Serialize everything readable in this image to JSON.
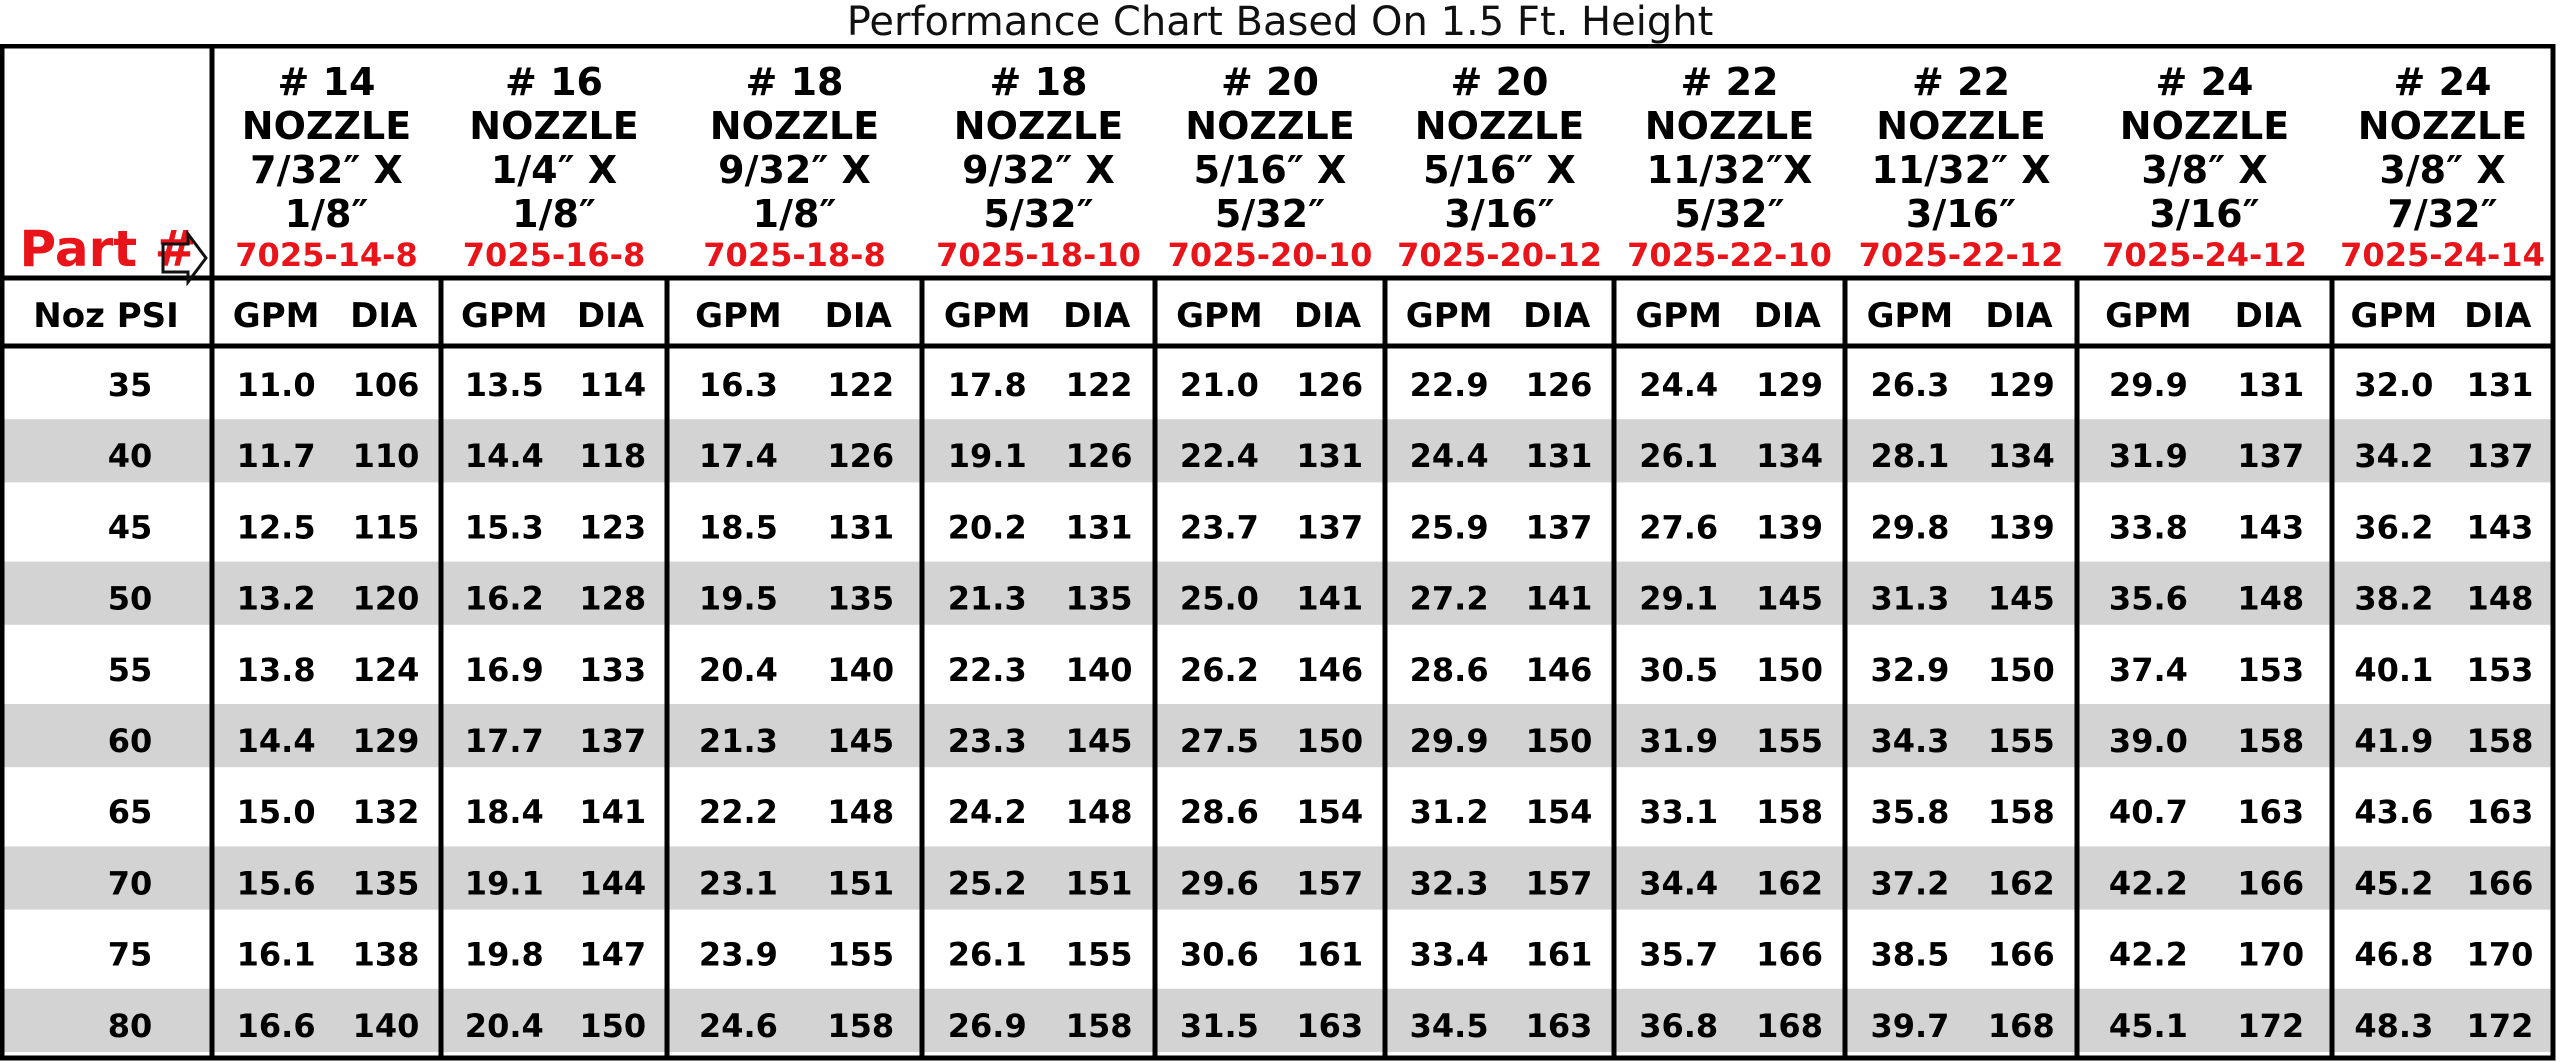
{
  "chart_data": {
    "type": "table",
    "title": "Performance Chart Based On 1.5 Ft. Height",
    "part_label": "Part #",
    "row_header": "Noz PSI",
    "sub_headers": [
      "GPM",
      "DIA"
    ],
    "nozzles": [
      {
        "line1": "# 14",
        "line2": "NOZZLE",
        "line3": "7/32″ X",
        "line4": "1/8″",
        "part": "7025-14-8"
      },
      {
        "line1": "# 16",
        "line2": "NOZZLE",
        "line3": "1/4″ X",
        "line4": "1/8″",
        "part": "7025-16-8"
      },
      {
        "line1": "# 18",
        "line2": "NOZZLE",
        "line3": "9/32″ X",
        "line4": "1/8″",
        "part": "7025-18-8"
      },
      {
        "line1": "# 18",
        "line2": "NOZZLE",
        "line3": "9/32″ X",
        "line4": "5/32″",
        "part": "7025-18-10"
      },
      {
        "line1": "# 20",
        "line2": "NOZZLE",
        "line3": "5/16″ X",
        "line4": "5/32″",
        "part": "7025-20-10"
      },
      {
        "line1": "# 20",
        "line2": "NOZZLE",
        "line3": "5/16″ X",
        "line4": "3/16″",
        "part": "7025-20-12"
      },
      {
        "line1": "# 22",
        "line2": "NOZZLE",
        "line3": "11/32″X",
        "line4": "5/32″",
        "part": "7025-22-10"
      },
      {
        "line1": "# 22",
        "line2": "NOZZLE",
        "line3": "11/32″ X",
        "line4": "3/16″",
        "part": "7025-22-12"
      },
      {
        "line1": "# 24",
        "line2": "NOZZLE",
        "line3": "3/8″ X",
        "line4": "3/16″",
        "part": "7025-24-12"
      },
      {
        "line1": "# 24",
        "line2": "NOZZLE",
        "line3": "3/8″ X",
        "line4": "7/32″",
        "part": "7025-24-14"
      }
    ],
    "rows": [
      {
        "psi": "35",
        "values": [
          "11.0",
          "106",
          "13.5",
          "114",
          "16.3",
          "122",
          "17.8",
          "122",
          "21.0",
          "126",
          "22.9",
          "126",
          "24.4",
          "129",
          "26.3",
          "129",
          "29.9",
          "131",
          "32.0",
          "131"
        ]
      },
      {
        "psi": "40",
        "values": [
          "11.7",
          "110",
          "14.4",
          "118",
          "17.4",
          "126",
          "19.1",
          "126",
          "22.4",
          "131",
          "24.4",
          "131",
          "26.1",
          "134",
          "28.1",
          "134",
          "31.9",
          "137",
          "34.2",
          "137"
        ]
      },
      {
        "psi": "45",
        "values": [
          "12.5",
          "115",
          "15.3",
          "123",
          "18.5",
          "131",
          "20.2",
          "131",
          "23.7",
          "137",
          "25.9",
          "137",
          "27.6",
          "139",
          "29.8",
          "139",
          "33.8",
          "143",
          "36.2",
          "143"
        ]
      },
      {
        "psi": "50",
        "values": [
          "13.2",
          "120",
          "16.2",
          "128",
          "19.5",
          "135",
          "21.3",
          "135",
          "25.0",
          "141",
          "27.2",
          "141",
          "29.1",
          "145",
          "31.3",
          "145",
          "35.6",
          "148",
          "38.2",
          "148"
        ]
      },
      {
        "psi": "55",
        "values": [
          "13.8",
          "124",
          "16.9",
          "133",
          "20.4",
          "140",
          "22.3",
          "140",
          "26.2",
          "146",
          "28.6",
          "146",
          "30.5",
          "150",
          "32.9",
          "150",
          "37.4",
          "153",
          "40.1",
          "153"
        ]
      },
      {
        "psi": "60",
        "values": [
          "14.4",
          "129",
          "17.7",
          "137",
          "21.3",
          "145",
          "23.3",
          "145",
          "27.5",
          "150",
          "29.9",
          "150",
          "31.9",
          "155",
          "34.3",
          "155",
          "39.0",
          "158",
          "41.9",
          "158"
        ]
      },
      {
        "psi": "65",
        "values": [
          "15.0",
          "132",
          "18.4",
          "141",
          "22.2",
          "148",
          "24.2",
          "148",
          "28.6",
          "154",
          "31.2",
          "154",
          "33.1",
          "158",
          "35.8",
          "158",
          "40.7",
          "163",
          "43.6",
          "163"
        ]
      },
      {
        "psi": "70",
        "values": [
          "15.6",
          "135",
          "19.1",
          "144",
          "23.1",
          "151",
          "25.2",
          "151",
          "29.6",
          "157",
          "32.3",
          "157",
          "34.4",
          "162",
          "37.2",
          "162",
          "42.2",
          "166",
          "45.2",
          "166"
        ]
      },
      {
        "psi": "75",
        "values": [
          "16.1",
          "138",
          "19.8",
          "147",
          "23.9",
          "155",
          "26.1",
          "155",
          "30.6",
          "161",
          "33.4",
          "161",
          "35.7",
          "166",
          "38.5",
          "166",
          "42.2",
          "170",
          "46.8",
          "170"
        ]
      },
      {
        "psi": "80",
        "values": [
          "16.6",
          "140",
          "20.4",
          "150",
          "24.6",
          "158",
          "26.9",
          "158",
          "31.5",
          "163",
          "34.5",
          "163",
          "36.8",
          "168",
          "39.7",
          "168",
          "45.1",
          "172",
          "48.3",
          "172"
        ]
      }
    ],
    "colors": {
      "part_text": "#e8141a",
      "stripe": "#d3d3d3",
      "border": "#000000",
      "text": "#111111"
    }
  }
}
